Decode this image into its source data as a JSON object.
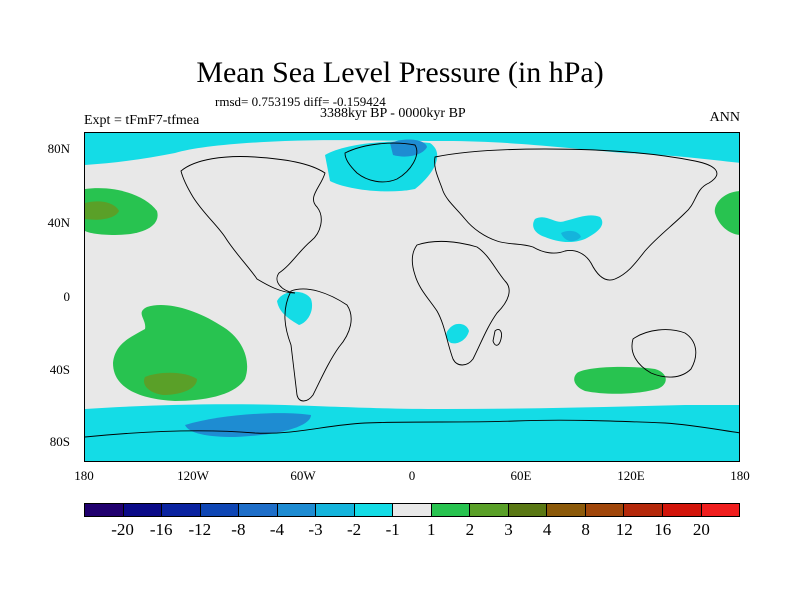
{
  "title": "Mean Sea Level Pressure (in hPa)",
  "stats": "rmsd= 0.753195 diff= -0.159424",
  "period": "3388kyr BP - 0000kyr BP",
  "experiment": "Expt = tFmF7-tfmea",
  "season": "ANN",
  "y_axis": {
    "labels": [
      "80N",
      "40N",
      "0",
      "40S",
      "80S"
    ]
  },
  "x_axis": {
    "labels": [
      "180",
      "120W",
      "60W",
      "0",
      "60E",
      "120E",
      "180"
    ]
  },
  "colorbar": {
    "labels": [
      "-20",
      "-16",
      "-12",
      "-8",
      "-4",
      "-3",
      "-2",
      "-1",
      "1",
      "2",
      "3",
      "4",
      "8",
      "12",
      "16",
      "20"
    ],
    "colors": [
      "#20006e",
      "#0a0a87",
      "#0a23a0",
      "#0f46b4",
      "#1e6ec8",
      "#1e8cd2",
      "#14b4dc",
      "#14dce6",
      "#e8e8e8",
      "#28c350",
      "#5aa028",
      "#5a7814",
      "#8c5a0a",
      "#a0460a",
      "#b4280a",
      "#d2140a",
      "#f01e1e"
    ]
  },
  "palette": {
    "background_field": "#e8e8e8",
    "light_cyan": "#14dce6",
    "mid_cyan": "#14b4dc",
    "blue": "#1e8cd2",
    "light_green": "#28c350",
    "dark_green": "#5aa028",
    "olive": "#5a7814",
    "coast": "#000000"
  }
}
